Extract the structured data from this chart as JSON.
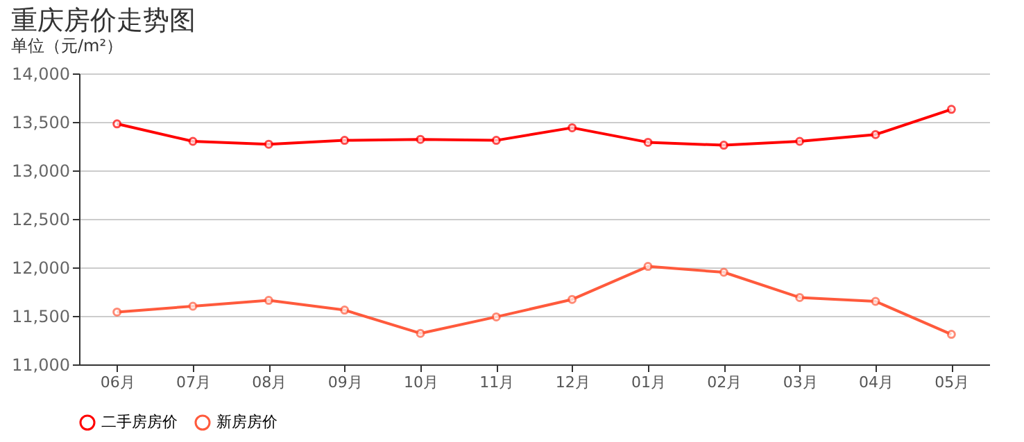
{
  "chart_data": {
    "type": "line",
    "title": "重庆房价走势图",
    "ylabel": "单位（元/m²）",
    "categories": [
      "06月",
      "07月",
      "08月",
      "09月",
      "10月",
      "11月",
      "12月",
      "01月",
      "02月",
      "03月",
      "04月",
      "05月"
    ],
    "series": [
      {
        "name": "二手房房价",
        "color": "#ff0000",
        "values": [
          13480,
          13300,
          13270,
          13310,
          13320,
          13310,
          13440,
          13290,
          13260,
          13300,
          13370,
          13630
        ]
      },
      {
        "name": "新房房价",
        "color": "#ff5a3c",
        "values": [
          11540,
          11600,
          11660,
          11560,
          11320,
          11490,
          11670,
          12010,
          11950,
          11690,
          11650,
          11310
        ]
      }
    ],
    "ylim": [
      11000,
      14000
    ],
    "yticks": [
      {
        "value": 11000,
        "label": "11,000"
      },
      {
        "value": 11500,
        "label": "11,500"
      },
      {
        "value": 12000,
        "label": "12,000"
      },
      {
        "value": 12500,
        "label": "12,500"
      },
      {
        "value": 13000,
        "label": "13,000"
      },
      {
        "value": 13500,
        "label": "13,500"
      },
      {
        "value": 14000,
        "label": "14,000"
      }
    ],
    "grid": "y",
    "legend": "bottom",
    "marker": "circle",
    "line_style": "solid"
  }
}
